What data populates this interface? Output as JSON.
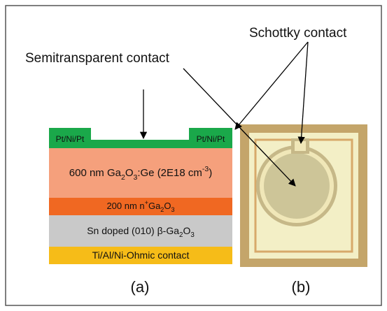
{
  "labels": {
    "schottky": "Schottky contact",
    "semitransparent": "Semitransparent contact",
    "a": "(a)",
    "b": "(b)"
  },
  "contacts": [
    "Pt/Ni/Pt",
    "Pt/Ni/Pt"
  ],
  "layers": [
    [
      {
        "text": "600 nm Ga"
      },
      {
        "sub": "2"
      },
      {
        "text": "O"
      },
      {
        "sub": "3"
      },
      {
        "text": ":Ge (2E18 cm"
      },
      {
        "sup": "-3"
      },
      {
        "text": ")"
      }
    ],
    [
      {
        "text": "200 nm n"
      },
      {
        "sup": "+"
      },
      {
        "text": "Ga"
      },
      {
        "sub": "2"
      },
      {
        "text": "O"
      },
      {
        "sub": "3"
      }
    ],
    [
      {
        "text": "Sn doped (010) β-Ga"
      },
      {
        "sub": "2"
      },
      {
        "text": "O"
      },
      {
        "sub": "3"
      }
    ],
    [
      {
        "text": "Ti/Al/Ni-Ohmic contact"
      }
    ]
  ]
}
